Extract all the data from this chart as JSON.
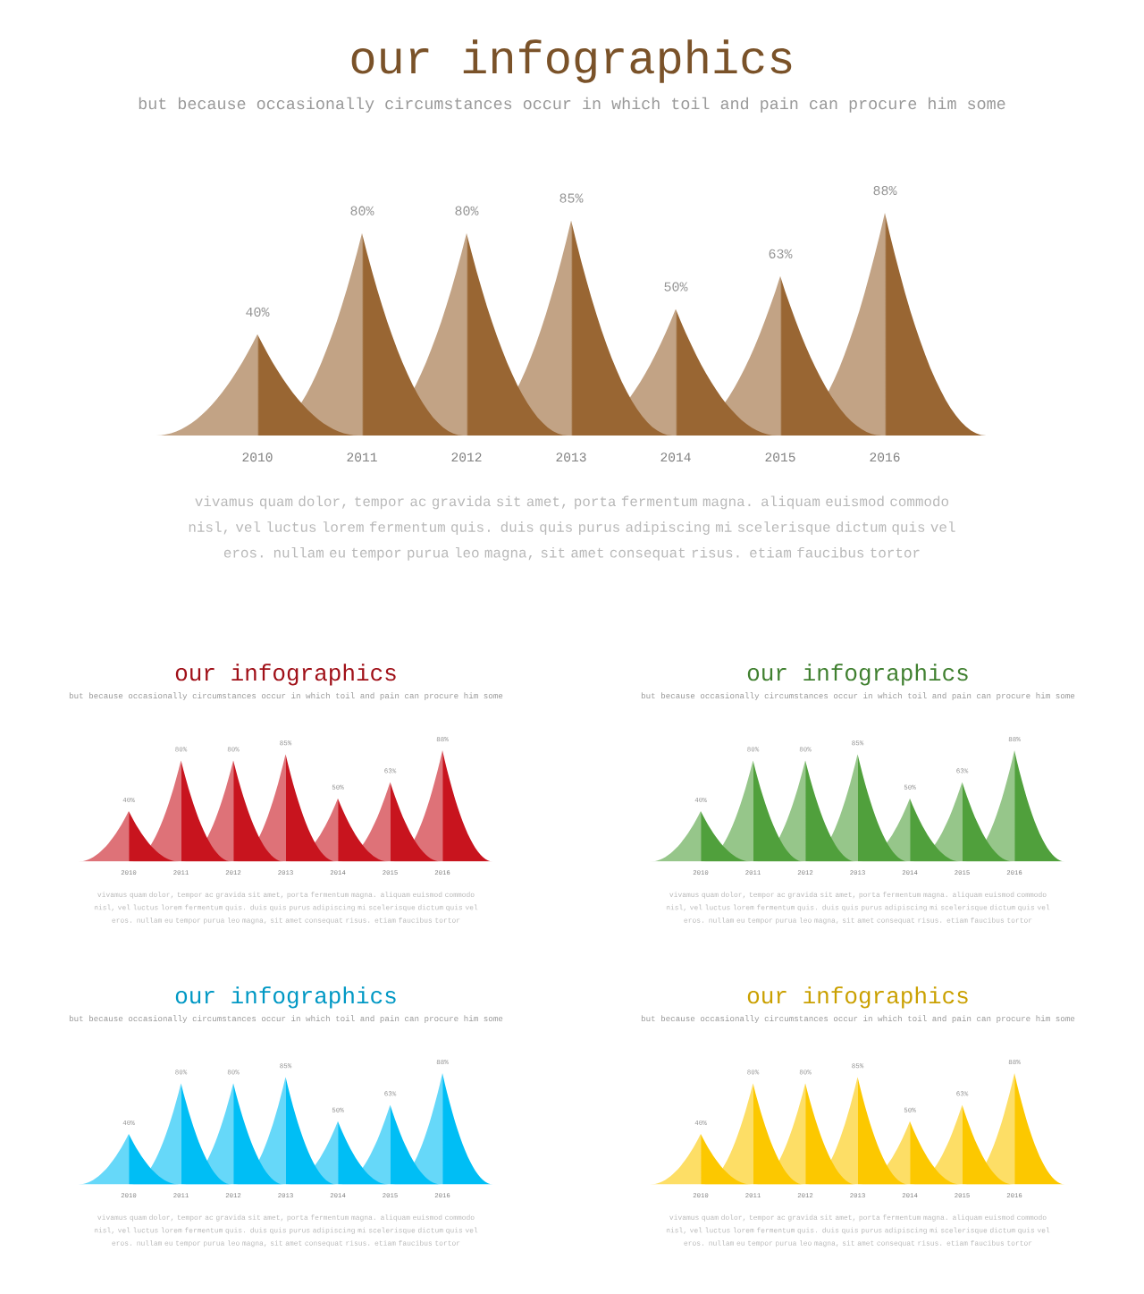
{
  "chart_data": [
    {
      "type": "bar",
      "title": "our infographics",
      "subtitle": "but because occasionally circumstances occur in which toil and pain can procure him some",
      "categories": [
        "2010",
        "2011",
        "2012",
        "2013",
        "2014",
        "2015",
        "2016"
      ],
      "values": [
        40,
        80,
        80,
        85,
        50,
        63,
        88
      ],
      "value_labels": [
        "40%",
        "80%",
        "80%",
        "85%",
        "50%",
        "63%",
        "88%"
      ],
      "color": "#996633",
      "annotations": [
        "vivamus quam dolor, tempor ac gravida sit amet, porta fermentum magna. aliquam euismod commodo nisl, vel luctus lorem fermentum quis. duis quis purus adipiscing mi scelerisque dictum quis vel eros. nullam eu tempor purua leo magna, sit amet consequat risus. etiam faucibus tortor"
      ]
    },
    {
      "type": "bar",
      "title": "our infographics",
      "subtitle": "but because occasionally circumstances occur in which toil and pain can procure him some",
      "categories": [
        "2010",
        "2011",
        "2012",
        "2013",
        "2014",
        "2015",
        "2016"
      ],
      "values": [
        40,
        80,
        80,
        85,
        50,
        63,
        88
      ],
      "value_labels": [
        "40%",
        "80%",
        "80%",
        "85%",
        "50%",
        "63%",
        "88%"
      ],
      "color": "#c8141e",
      "annotations": [
        "vivamus quam dolor, tempor ac gravida sit amet, porta fermentum magna. aliquam euismod commodo nisl, vel luctus lorem fermentum quis. duis quis purus adipiscing mi scelerisque dictum quis vel eros. nullam eu tempor purua leo magna, sit amet consequat risus. etiam faucibus tortor"
      ]
    },
    {
      "type": "bar",
      "title": "our infographics",
      "subtitle": "but because occasionally circumstances occur in which toil and pain can procure him some",
      "categories": [
        "2010",
        "2011",
        "2012",
        "2013",
        "2014",
        "2015",
        "2016"
      ],
      "values": [
        40,
        80,
        80,
        85,
        50,
        63,
        88
      ],
      "value_labels": [
        "40%",
        "80%",
        "80%",
        "85%",
        "50%",
        "63%",
        "88%"
      ],
      "color": "#50a03c",
      "annotations": [
        "vivamus quam dolor, tempor ac gravida sit amet, porta fermentum magna. aliquam euismod commodo nisl, vel luctus lorem fermentum quis. duis quis purus adipiscing mi scelerisque dictum quis vel eros. nullam eu tempor purua leo magna, sit amet consequat risus. etiam faucibus tortor"
      ]
    },
    {
      "type": "bar",
      "title": "our infographics",
      "subtitle": "but because occasionally circumstances occur in which toil and pain can procure him some",
      "categories": [
        "2010",
        "2011",
        "2012",
        "2013",
        "2014",
        "2015",
        "2016"
      ],
      "values": [
        40,
        80,
        80,
        85,
        50,
        63,
        88
      ],
      "value_labels": [
        "40%",
        "80%",
        "80%",
        "85%",
        "50%",
        "63%",
        "88%"
      ],
      "color": "#00bef5",
      "annotations": [
        "vivamus quam dolor, tempor ac gravida sit amet, porta fermentum magna. aliquam euismod commodo nisl, vel luctus lorem fermentum quis. duis quis purus adipiscing mi scelerisque dictum quis vel eros. nullam eu tempor purua leo magna, sit amet consequat risus. etiam faucibus tortor"
      ]
    },
    {
      "type": "bar",
      "title": "our infographics",
      "subtitle": "but because occasionally circumstances occur in which toil and pain can procure him some",
      "categories": [
        "2010",
        "2011",
        "2012",
        "2013",
        "2014",
        "2015",
        "2016"
      ],
      "values": [
        40,
        80,
        80,
        85,
        50,
        63,
        88
      ],
      "value_labels": [
        "40%",
        "80%",
        "80%",
        "85%",
        "50%",
        "63%",
        "88%"
      ],
      "color": "#fcc800",
      "annotations": [
        "vivamus quam dolor, tempor ac gravida sit amet, porta fermentum magna. aliquam euismod commodo nisl, vel luctus lorem fermentum quis. duis quis purus adipiscing mi scelerisque dictum quis vel eros. nullam eu tempor purua leo magna, sit amet consequat risus. etiam faucibus tortor"
      ]
    }
  ]
}
